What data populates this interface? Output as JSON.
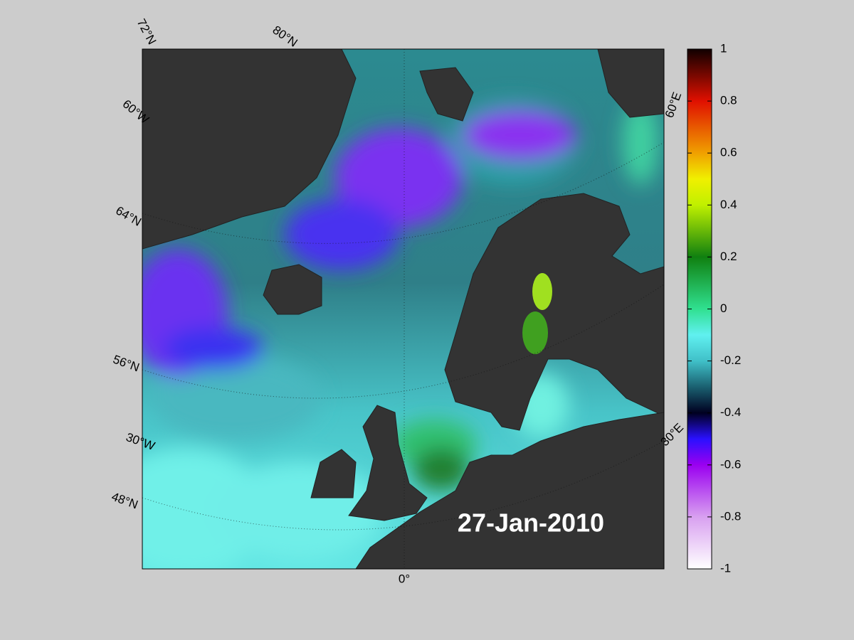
{
  "map": {
    "date": "27-Jan-2010",
    "graticule_labels": [
      "72°N",
      "80°N",
      "60°W",
      "64°N",
      "56°N",
      "30°W",
      "48°N",
      "0°",
      "30°E",
      "60°E"
    ]
  },
  "colorbar": {
    "lim": [
      -1,
      1
    ],
    "ticks": [
      -1,
      -0.8,
      -0.6,
      -0.4,
      -0.2,
      0,
      0.2,
      0.4,
      0.6,
      0.8,
      1
    ]
  }
}
